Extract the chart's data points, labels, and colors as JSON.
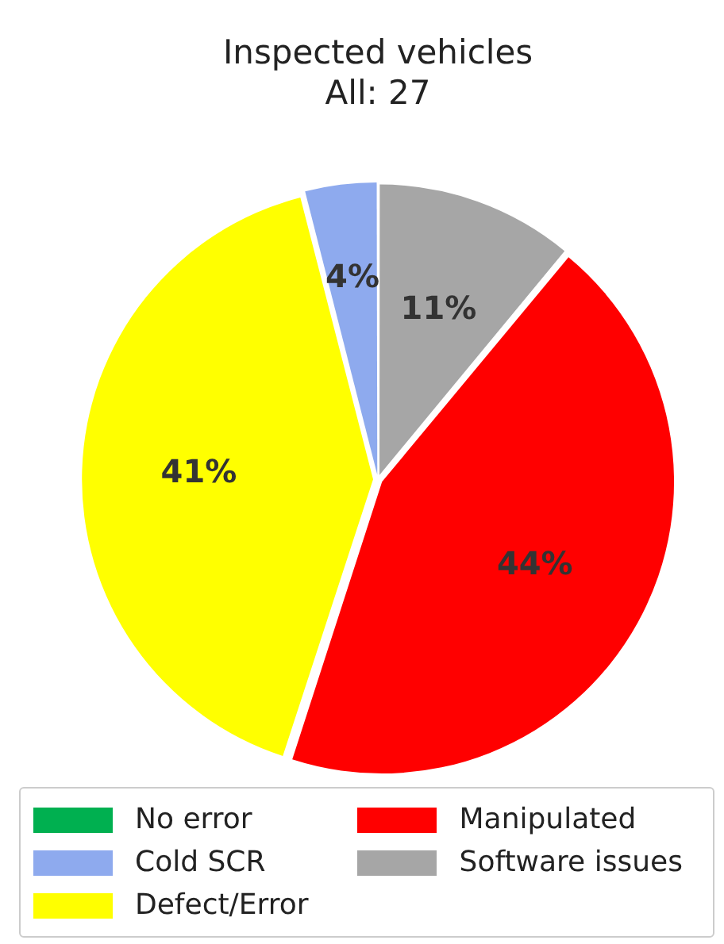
{
  "chart_data": {
    "type": "pie",
    "title": "Inspected vehicles",
    "subtitle": "All: 27",
    "categories": [
      "No error",
      "Cold SCR",
      "Defect/Error",
      "Manipulated",
      "Software issues"
    ],
    "values": [
      0,
      4,
      41,
      44,
      11
    ],
    "colors": [
      "#00b050",
      "#8eaaee",
      "#ffff00",
      "#ff0000",
      "#a6a6a6"
    ],
    "value_labels": [
      null,
      "4%",
      "41%",
      "44%",
      "11%"
    ],
    "legend": "bottom"
  }
}
